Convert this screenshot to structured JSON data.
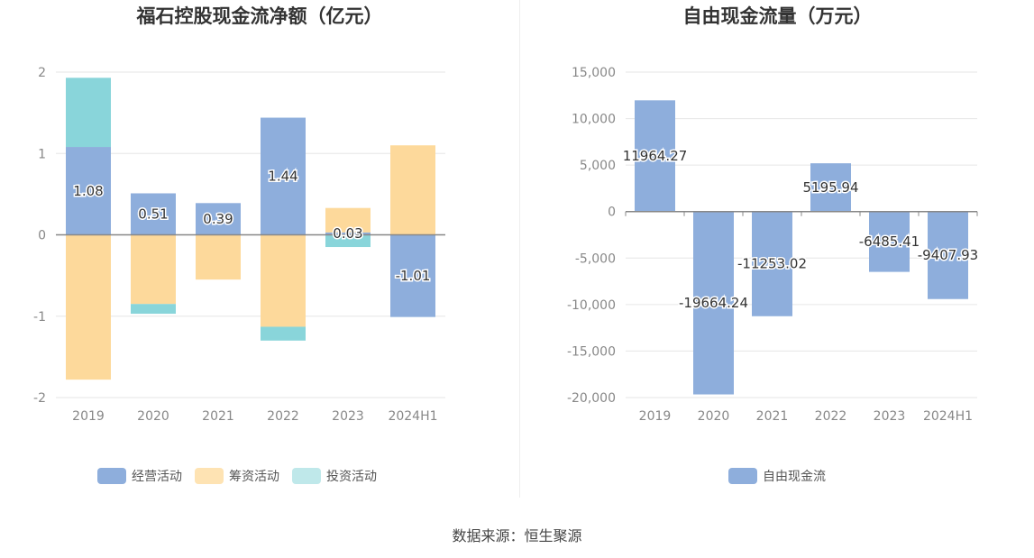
{
  "chart_data": [
    {
      "type": "bar",
      "stacked": true,
      "title": "福石控股现金流净额（亿元）",
      "categories": [
        "2019",
        "2020",
        "2021",
        "2022",
        "2023",
        "2024H1"
      ],
      "series": [
        {
          "name": "经营活动",
          "color": "#8eaedc",
          "values": [
            1.08,
            0.51,
            0.39,
            1.44,
            0.03,
            -1.01
          ],
          "labeled": true
        },
        {
          "name": "筹资活动",
          "color": "#fdd99b",
          "values": [
            -1.78,
            -0.85,
            -0.55,
            -1.13,
            0.3,
            1.1
          ],
          "labeled": false
        },
        {
          "name": "投资活动",
          "color": "#89d5da",
          "values": [
            0.85,
            -0.12,
            0.0,
            -0.17,
            -0.15,
            0.0
          ],
          "labeled": false
        }
      ],
      "data_labels": [
        "1.08",
        "0.51",
        "0.39",
        "1.44",
        "0.03",
        "-1.01"
      ],
      "yticks": [
        "2",
        "1",
        "0",
        "-1",
        "-2"
      ],
      "ylim": [
        -2,
        2
      ]
    },
    {
      "type": "bar",
      "title": "自由现金流量（万元）",
      "categories": [
        "2019",
        "2020",
        "2021",
        "2022",
        "2023",
        "2024H1"
      ],
      "series": [
        {
          "name": "自由现金流",
          "color": "#8eaedc",
          "values": [
            11964.27,
            -19664.24,
            -11253.02,
            5195.94,
            -6485.41,
            -9407.93
          ]
        }
      ],
      "data_labels": [
        "11964.27",
        "-19664.24",
        "-11253.02",
        "5195.94",
        "-6485.41",
        "-9407.93"
      ],
      "yticks": [
        "15,000",
        "10,000",
        "5,000",
        "0",
        "-5,000",
        "-10,000",
        "-15,000",
        "-20,000"
      ],
      "ylim": [
        -20000,
        15000
      ]
    }
  ],
  "footer": {
    "source": "数据来源：恒生聚源"
  }
}
